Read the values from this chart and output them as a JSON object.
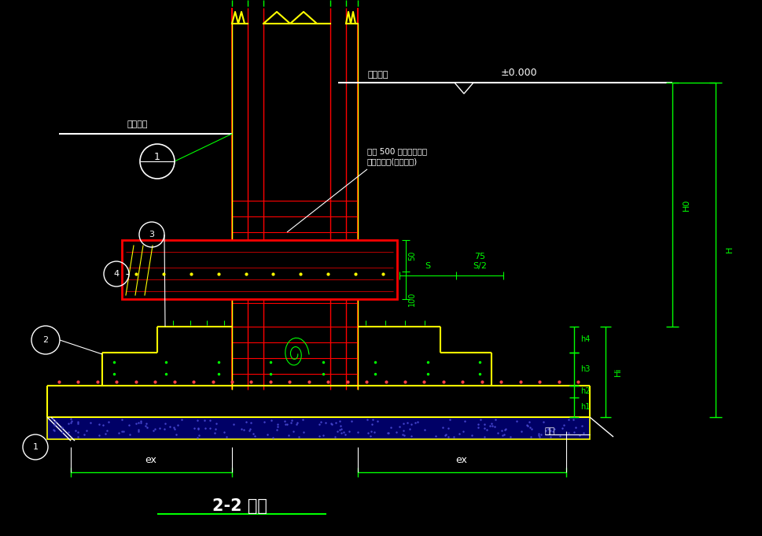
{
  "bg_color": "#000000",
  "green": "#00FF00",
  "yellow": "#FFFF00",
  "red": "#FF0000",
  "white": "#FFFFFF",
  "title": "2-2 剖面",
  "label_waidi": "室外地面",
  "label_shinei": "室内地面",
  "label_pm000": "±0.000",
  "label_h0": "H0",
  "label_h": "H",
  "label_hi": "Hi",
  "label_h1": "h1",
  "label_h2": "h2",
  "label_h3": "h3",
  "label_h4": "h4",
  "label_s": "S",
  "label_s2": "S/2",
  "label_75": "75",
  "label_50": "50",
  "label_100": "100",
  "label_ex": "ex",
  "label_dieceng": "墊层",
  "label_ann1": "间距 500 且不少于两道",
  "label_ann2": "矩形封闭筜(非复合筜)"
}
